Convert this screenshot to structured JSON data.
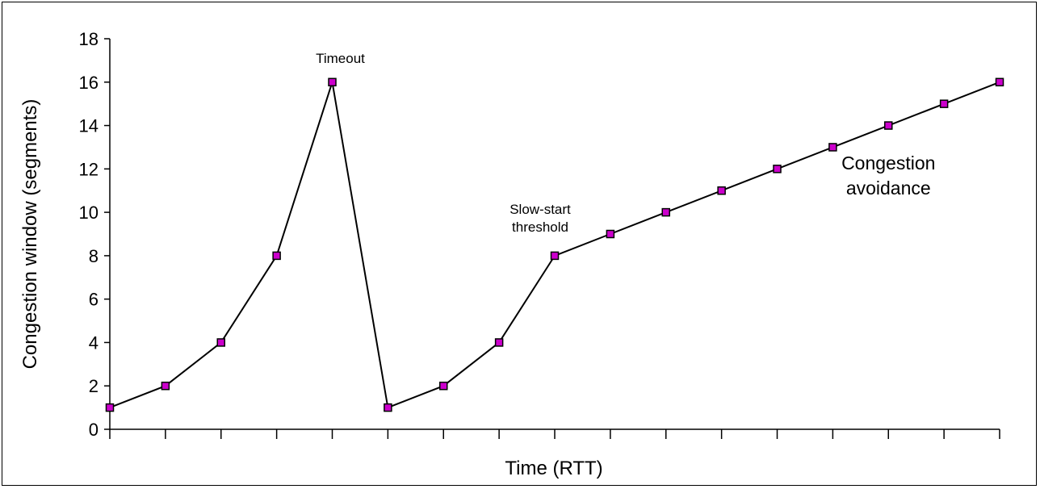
{
  "chart_data": {
    "type": "line",
    "title": "",
    "xlabel": "Time (RTT)",
    "ylabel": "Congestion window (segments)",
    "ylim": [
      0,
      18
    ],
    "yticks": [
      0,
      2,
      4,
      6,
      8,
      10,
      12,
      14,
      16,
      18
    ],
    "x": [
      0,
      1,
      2,
      3,
      4,
      5,
      6,
      7,
      8,
      9,
      10,
      11,
      12,
      13,
      14,
      15,
      16
    ],
    "series": [
      {
        "values": [
          1,
          2,
          4,
          8,
          16,
          1,
          2,
          4,
          8,
          9,
          10,
          11,
          12,
          13,
          14,
          15,
          16
        ],
        "color": "#000000",
        "marker_color": "#cc00cc"
      }
    ],
    "grid": false,
    "annotations": [
      {
        "id": "timeout",
        "lines": [
          "Timeout"
        ],
        "x": 4,
        "y": 16
      },
      {
        "id": "ssthresh",
        "lines": [
          "Slow-start",
          "threshold"
        ],
        "x": 8,
        "y": 8
      },
      {
        "id": "ca",
        "lines": [
          "Congestion",
          "avoidance"
        ],
        "x": 14,
        "y": 11
      }
    ]
  }
}
